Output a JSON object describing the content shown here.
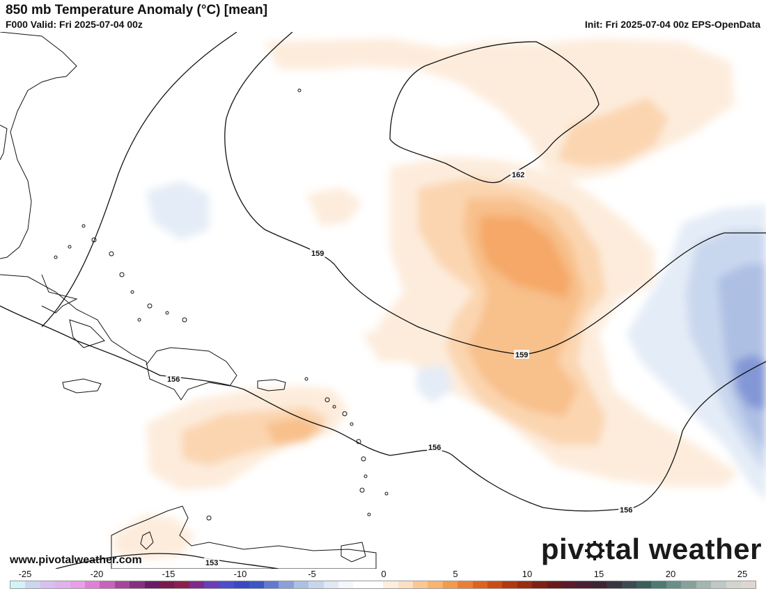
{
  "header": {
    "title": "850 mb Temperature Anomaly (°C) [mean]",
    "valid": "F000 Valid: Fri 2025-07-04 00z",
    "init": "Init: Fri 2025-07-04 00z EPS-OpenData"
  },
  "contours": {
    "labels": [
      "162",
      "159",
      "159",
      "156",
      "156",
      "156",
      "153"
    ]
  },
  "watermark": {
    "url": "www.pivotalweather.com",
    "logo_left": "piv",
    "logo_right": "tal weather"
  },
  "colorbar": {
    "ticks": [
      "-25",
      "-20",
      "-15",
      "-10",
      "-5",
      "0",
      "5",
      "10",
      "15",
      "20",
      "25"
    ],
    "colors": [
      "#d2f4f8",
      "#cbd6f1",
      "#d7c0ef",
      "#e0b2ee",
      "#e89ee8",
      "#e07fd8",
      "#c862bb",
      "#a5469c",
      "#85307f",
      "#6a1c66",
      "#791a4e",
      "#8c1f4f",
      "#7d2a8e",
      "#6a3eb8",
      "#4f4ccc",
      "#3948c4",
      "#3c56c6",
      "#6179cf",
      "#8aa0d8",
      "#abc1e2",
      "#c6d6ec",
      "#dfe8f4",
      "#f3f6fa",
      "#ffffff",
      "#ffffff",
      "#fdeede",
      "#fde0c4",
      "#fbc893",
      "#f9b46e",
      "#f49a4d",
      "#ea7f33",
      "#dd6420",
      "#cc4d14",
      "#b33810",
      "#9a2c12",
      "#7f2016",
      "#6a1a1a",
      "#5a1c2a",
      "#4a1f33",
      "#3e2533",
      "#3a3540",
      "#3d4a52",
      "#3b5e5c",
      "#4d7a72",
      "#6a8f86",
      "#86a29a",
      "#a3b6b0",
      "#bec8c4",
      "#d4d4cf",
      "#e0d6d0"
    ]
  }
}
